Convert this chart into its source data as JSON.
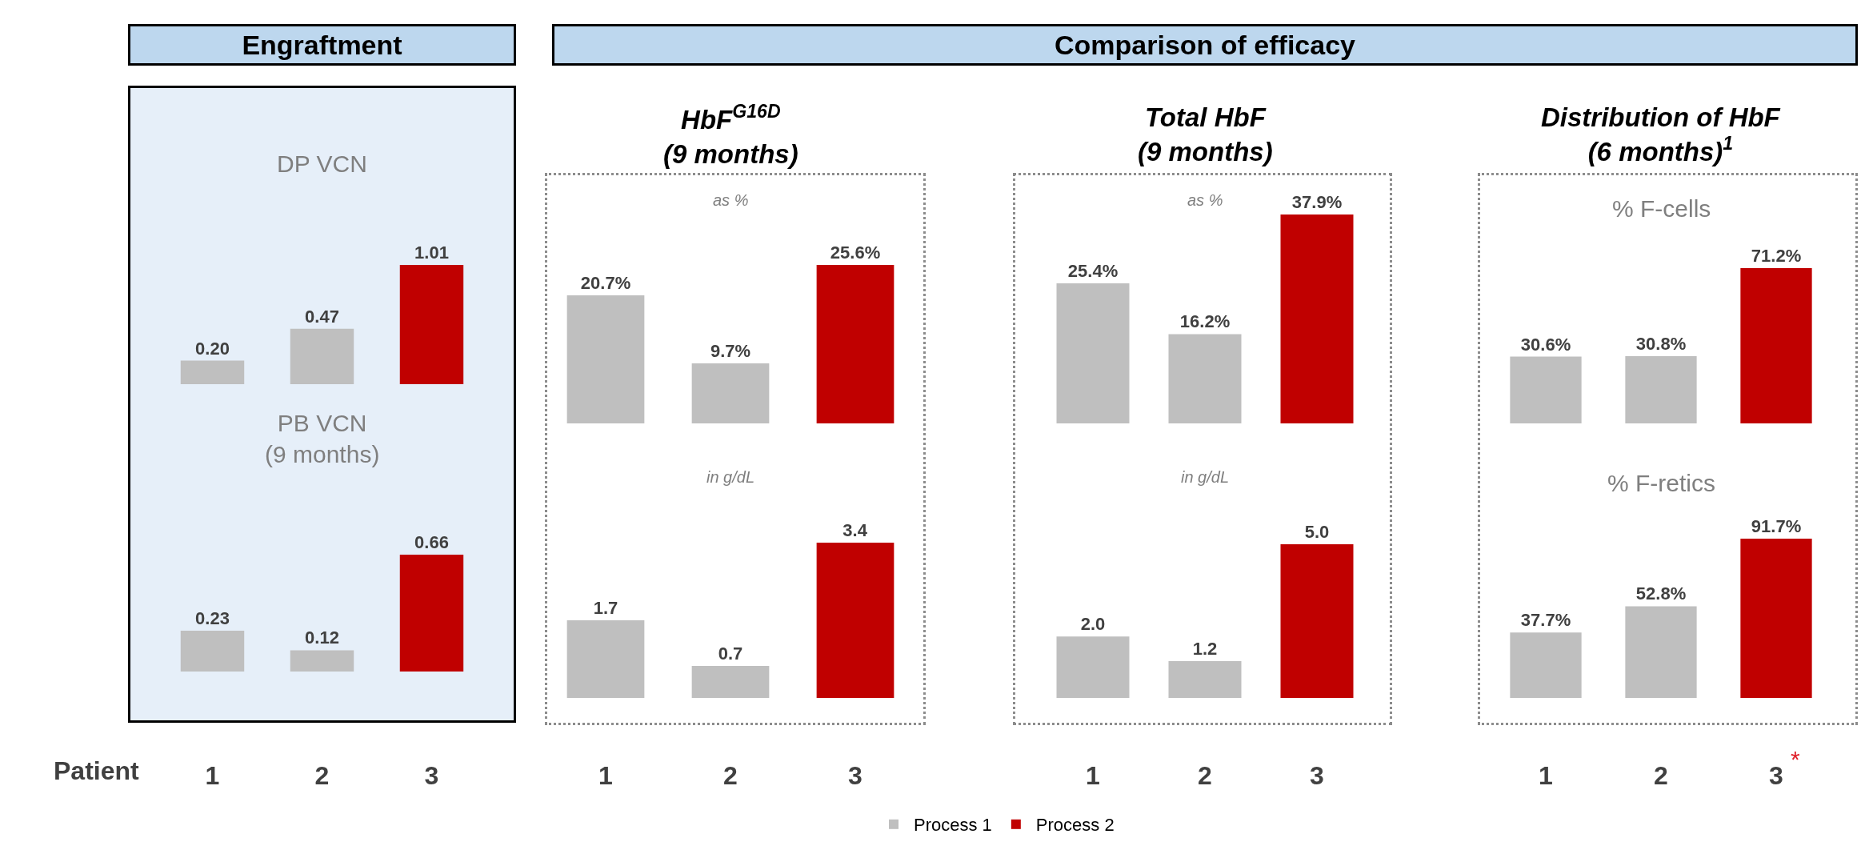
{
  "chart_data": [
    {
      "type": "bar",
      "title": "DP VCN",
      "annotations": [
        "Engraftment"
      ],
      "categories": [
        "1",
        "2",
        "3"
      ],
      "tick_labels": false,
      "series": [
        {
          "color": "#bfbfbf",
          "values": [
            0.2,
            0.47,
            null
          ],
          "value_labels": [
            "0.20",
            "0.47",
            null
          ]
        },
        {
          "color": "#c00000",
          "values": [
            null,
            null,
            1.01
          ],
          "value_labels": [
            null,
            null,
            "1.01"
          ]
        }
      ]
    },
    {
      "type": "bar",
      "title": "PB VCN\n(9 months)",
      "xlabel": "Patient",
      "categories": [
        "1",
        "2",
        "3"
      ],
      "tick_labels": "x",
      "series": [
        {
          "color": "#bfbfbf",
          "values": [
            0.23,
            0.12,
            null
          ],
          "value_labels": [
            "0.23",
            "0.12",
            null
          ]
        },
        {
          "color": "#c00000",
          "values": [
            null,
            null,
            0.66
          ],
          "value_labels": [
            null,
            null,
            "0.66"
          ]
        }
      ]
    },
    {
      "type": "bar",
      "title": "HbF$^{G16D}$\n(9 months)",
      "subtitle": "as %",
      "annotations": [
        "Comparison of efficacy"
      ],
      "categories": [
        "1",
        "2",
        "3"
      ],
      "tick_labels": false,
      "series": [
        {
          "color": "#bfbfbf",
          "values": [
            20.7,
            9.7,
            null
          ],
          "value_labels": [
            "20.7%",
            "9.7%",
            null
          ]
        },
        {
          "color": "#c00000",
          "values": [
            null,
            null,
            25.6
          ],
          "value_labels": [
            null,
            null,
            "25.6%"
          ]
        }
      ]
    },
    {
      "type": "bar",
      "title": "in g/dL",
      "categories": [
        "1",
        "2",
        "3"
      ],
      "tick_labels": "x",
      "series": [
        {
          "color": "#bfbfbf",
          "values": [
            1.7,
            0.7,
            null
          ],
          "value_labels": [
            "1.7",
            "0.7",
            null
          ]
        },
        {
          "color": "#c00000",
          "values": [
            null,
            null,
            3.4
          ],
          "value_labels": [
            null,
            null,
            "3.4"
          ]
        }
      ]
    },
    {
      "type": "bar",
      "title": "Total HbF\n(9 months)",
      "subtitle": "as %",
      "categories": [
        "1",
        "2",
        "3"
      ],
      "tick_labels": false,
      "series": [
        {
          "color": "#bfbfbf",
          "values": [
            25.4,
            16.2,
            null
          ],
          "value_labels": [
            "25.4%",
            "16.2%",
            null
          ]
        },
        {
          "color": "#c00000",
          "values": [
            null,
            null,
            37.9
          ],
          "value_labels": [
            null,
            null,
            "37.9%"
          ]
        }
      ]
    },
    {
      "type": "bar",
      "title": "in g/dL",
      "categories": [
        "1",
        "2",
        "3"
      ],
      "tick_labels": "x",
      "legend": "bottom",
      "series": [
        {
          "name": "Process 1",
          "color": "#bfbfbf",
          "values": [
            2.0,
            1.2,
            null
          ],
          "value_labels": [
            "2.0",
            "1.2",
            null
          ]
        },
        {
          "name": "Process 2",
          "color": "#c00000",
          "values": [
            null,
            null,
            5.0
          ],
          "value_labels": [
            null,
            null,
            "5.0"
          ]
        }
      ]
    },
    {
      "type": "bar",
      "title": "Distribution of HbF\n(6 months)$^{1}$",
      "subtitle": "% F-cells",
      "categories": [
        "1",
        "2",
        "3"
      ],
      "tick_labels": false,
      "series": [
        {
          "color": "#bfbfbf",
          "values": [
            30.6,
            30.8,
            null
          ],
          "value_labels": [
            "30.6%",
            "30.8%",
            null
          ]
        },
        {
          "color": "#c00000",
          "values": [
            null,
            null,
            71.2
          ],
          "value_labels": [
            null,
            null,
            "71.2%"
          ]
        }
      ]
    },
    {
      "type": "bar",
      "title": "% F-retics",
      "annotations": [
        "*"
      ],
      "categories": [
        "1",
        "2",
        "3"
      ],
      "tick_labels": "x",
      "series": [
        {
          "color": "#bfbfbf",
          "values": [
            37.7,
            52.8,
            null
          ],
          "value_labels": [
            "37.7%",
            "52.8%",
            null
          ]
        },
        {
          "color": "#c00000",
          "values": [
            null,
            null,
            91.7
          ],
          "value_labels": [
            null,
            null,
            "91.7%"
          ]
        }
      ]
    }
  ]
}
